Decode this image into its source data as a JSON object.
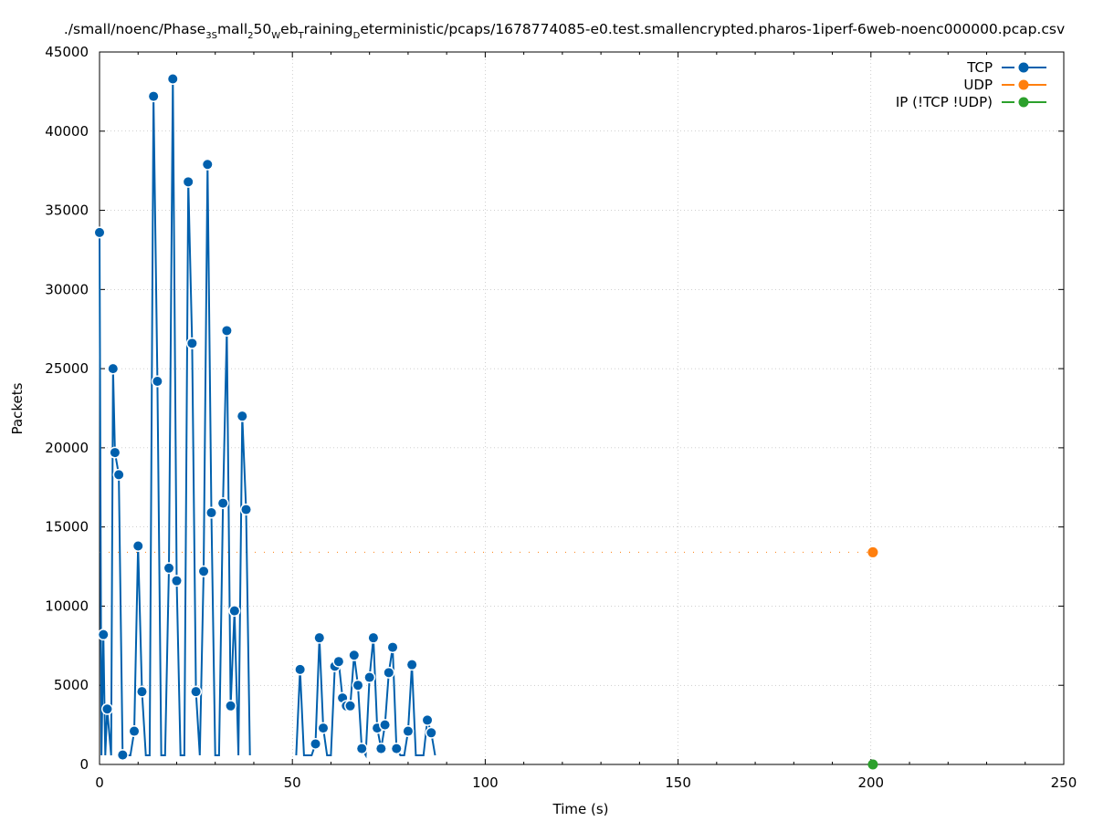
{
  "chart_data": {
    "type": "line",
    "title": "./small/noenc/Phase_3Small_250_WebTraining_Deterministic/pcaps/1678774085-e0.test.smallencrypted.pharos-1iperf-6web-noenc000000.pcap.csv",
    "title_parts": {
      "p1": "./small/noenc/Phase",
      "s1": "3S",
      "p2": "mall",
      "s2": "2",
      "p3": "50",
      "s3": "W",
      "p4": "eb",
      "s4": "T",
      "p5": "raining",
      "s5": "D",
      "p6": "eterministic/pcaps/1678774085-e0.test.smallencrypted.pharos-1iperf-6web-noenc000000.pcap.csv"
    },
    "xlabel": "Time (s)",
    "ylabel": "Packets",
    "xlim": [
      0,
      250
    ],
    "ylim": [
      0,
      45000
    ],
    "xticks": [
      0,
      50,
      100,
      150,
      200,
      250
    ],
    "yticks": [
      0,
      5000,
      10000,
      15000,
      20000,
      25000,
      30000,
      35000,
      40000,
      45000
    ],
    "grid": true,
    "legend_position": "top-right",
    "legend": [
      "TCP",
      "UDP",
      "IP (!TCP  !UDP)"
    ],
    "series": [
      {
        "name": "TCP",
        "color": "#0060ad",
        "style": "solid-line-with-points",
        "points": [
          [
            0,
            33600
          ],
          [
            0.5,
            0
          ],
          [
            1,
            8200
          ],
          [
            1.5,
            0
          ],
          [
            2,
            3500
          ],
          [
            3,
            0
          ],
          [
            3.5,
            25000
          ],
          [
            4,
            19700
          ],
          [
            5,
            18300
          ],
          [
            6,
            600
          ],
          [
            7,
            0
          ],
          [
            8,
            0
          ],
          [
            9,
            2100
          ],
          [
            10,
            13800
          ],
          [
            11,
            4600
          ],
          [
            12,
            0
          ],
          [
            13,
            0
          ],
          [
            14,
            42200
          ],
          [
            15,
            24200
          ],
          [
            16,
            0
          ],
          [
            17,
            0
          ],
          [
            18,
            12400
          ],
          [
            19,
            43300
          ],
          [
            20,
            11600
          ],
          [
            21,
            0
          ],
          [
            22,
            0
          ],
          [
            23,
            36800
          ],
          [
            24,
            26600
          ],
          [
            25,
            4600
          ],
          [
            26,
            0
          ],
          [
            27,
            12200
          ],
          [
            28,
            37900
          ],
          [
            29,
            15900
          ],
          [
            30,
            0
          ],
          [
            31,
            0
          ],
          [
            32,
            16500
          ],
          [
            33,
            27400
          ],
          [
            34,
            3700
          ],
          [
            35,
            9700
          ],
          [
            36,
            0
          ],
          [
            37,
            22000
          ],
          [
            38,
            16100
          ],
          [
            39,
            0
          ],
          [
            51,
            0
          ],
          [
            52,
            6000
          ],
          [
            53,
            0
          ],
          [
            55,
            0
          ],
          [
            56,
            1300
          ],
          [
            57,
            8000
          ],
          [
            58,
            2300
          ],
          [
            59,
            0
          ],
          [
            60,
            0
          ],
          [
            61,
            6200
          ],
          [
            62,
            6500
          ],
          [
            63,
            4200
          ],
          [
            64,
            3700
          ],
          [
            65,
            3700
          ],
          [
            66,
            6900
          ],
          [
            67,
            5000
          ],
          [
            68,
            1000
          ],
          [
            69,
            0
          ],
          [
            70,
            5500
          ],
          [
            71,
            8000
          ],
          [
            72,
            2300
          ],
          [
            73,
            1000
          ],
          [
            74,
            2500
          ],
          [
            75,
            5800
          ],
          [
            76,
            7400
          ],
          [
            77,
            1000
          ],
          [
            78,
            0
          ],
          [
            79,
            0
          ],
          [
            80,
            2100
          ],
          [
            81,
            6300
          ],
          [
            82,
            0
          ],
          [
            83,
            0
          ],
          [
            84,
            0
          ],
          [
            85,
            2800
          ],
          [
            86,
            2000
          ],
          [
            87,
            0
          ]
        ]
      },
      {
        "name": "UDP",
        "color": "#ff7f0e",
        "style": "dashed-line-with-point",
        "points": [
          [
            0,
            13400
          ],
          [
            200.5,
            13400
          ]
        ]
      },
      {
        "name": "IP (!TCP  !UDP)",
        "color": "#2ca02c",
        "style": "point",
        "points": [
          [
            200.5,
            0
          ]
        ]
      }
    ]
  }
}
